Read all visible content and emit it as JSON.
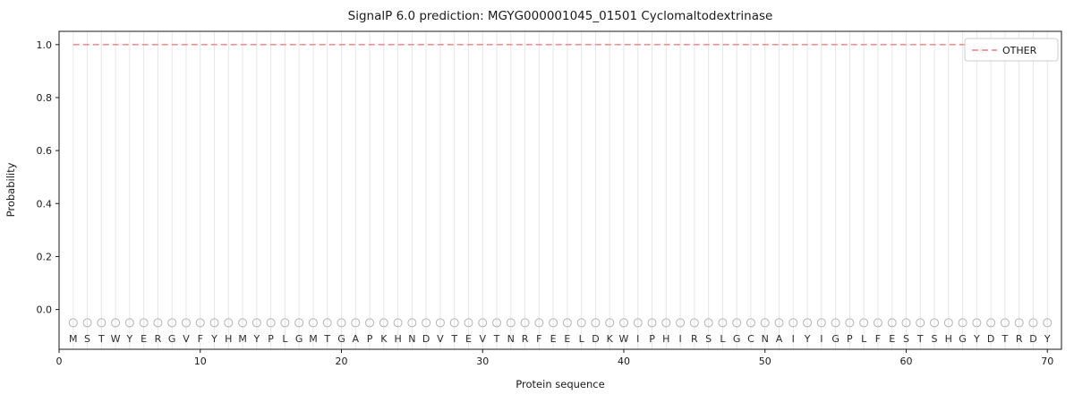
{
  "title": "SignalP 6.0 prediction: MGYG000001045_01501 Cyclomaltodextrinase",
  "chart_data": {
    "type": "line",
    "title": "SignalP 6.0 prediction: MGYG000001045_01501 Cyclomaltodextrinase",
    "xlabel": "Protein sequence",
    "ylabel": "Probability",
    "xlim": [
      0,
      71
    ],
    "ylim": [
      -0.15,
      1.05
    ],
    "x_ticks": [
      0,
      10,
      20,
      30,
      40,
      50,
      60,
      70
    ],
    "y_ticks": [
      0.0,
      0.2,
      0.4,
      0.6,
      0.8,
      1.0
    ],
    "grid": "vertical gridline at every residue position",
    "sequence": "MSTWYERGVFYHMYPLGMTGAPKHNDVTEVTNRFEELDKWIPHIRSLGCNAIYIGPLFESTSHGYDTRDY",
    "sequence_length": 70,
    "series": [
      {
        "name": "OTHER",
        "style": "dashed",
        "color": "#ef7f7f",
        "x_start": 1,
        "x_end": 70,
        "y_constant": 1.0
      }
    ],
    "markers": {
      "shape": "open-circle",
      "color": "#b3b3b3",
      "y_value": -0.05,
      "count": 70
    },
    "legend": {
      "position": "upper right",
      "entries": [
        {
          "label": "OTHER",
          "color": "#ef7f7f",
          "style": "dashed"
        }
      ]
    },
    "colors": {
      "other_line": "#ef7f7f",
      "gridline": "#e6e6e6",
      "axes_spine": "#1a1a1a",
      "marker_stroke": "#b3b3b3",
      "legend_border": "#cccccc"
    }
  }
}
